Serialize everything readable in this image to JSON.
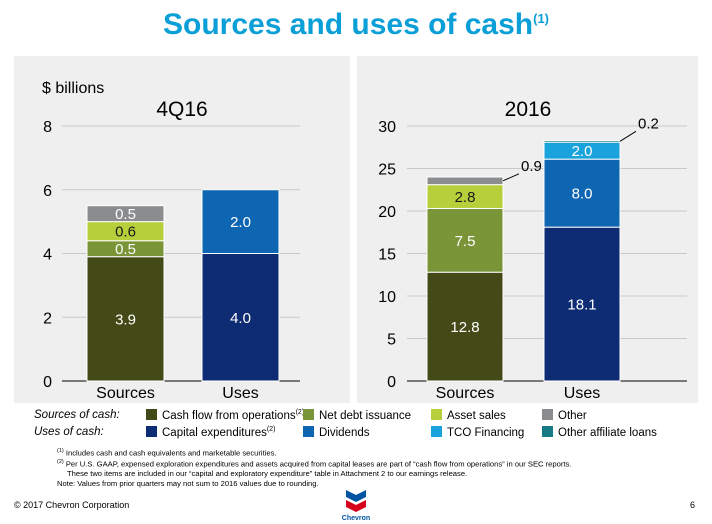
{
  "title": "Sources and uses of cash",
  "title_superscript": "(1)",
  "y_unit_label": "$ billions",
  "chart_data": [
    {
      "type": "bar",
      "stacked": true,
      "title": "4Q16",
      "categories": [
        "Sources",
        "Uses"
      ],
      "ylim": [
        0,
        8
      ],
      "yticks": [
        0,
        2,
        4,
        6,
        8
      ],
      "grid": true,
      "series": [
        {
          "name": "Cash flow from operations",
          "color": "#434a17",
          "values": [
            3.9,
            0
          ]
        },
        {
          "name": "Net debt issuance",
          "color": "#7a9537",
          "values": [
            0.5,
            0
          ]
        },
        {
          "name": "Asset sales",
          "color": "#b7cf3b",
          "values": [
            0.6,
            0
          ]
        },
        {
          "name": "Other",
          "color": "#8a8c8e",
          "values": [
            0.5,
            0
          ]
        },
        {
          "name": "Capital expenditures",
          "color": "#0e2c73",
          "values": [
            0,
            4.0
          ]
        },
        {
          "name": "Dividends",
          "color": "#0e66b2",
          "values": [
            0,
            2.0
          ]
        },
        {
          "name": "TCO Financing",
          "color": "#1aa2dd",
          "values": [
            0,
            0
          ]
        },
        {
          "name": "Other affiliate loans",
          "color": "#177b86",
          "values": [
            0,
            0
          ]
        }
      ],
      "labels": [
        [
          "3.9",
          "0.5",
          "0.6",
          "0.5"
        ],
        [
          "4.0",
          "2.0"
        ]
      ]
    },
    {
      "type": "bar",
      "stacked": true,
      "title": "2016",
      "categories": [
        "Sources",
        "Uses"
      ],
      "ylim": [
        0,
        30
      ],
      "yticks": [
        0,
        5,
        10,
        15,
        20,
        25,
        30
      ],
      "grid": true,
      "series": [
        {
          "name": "Cash flow from operations",
          "color": "#434a17",
          "values": [
            12.8,
            0
          ]
        },
        {
          "name": "Net debt issuance",
          "color": "#7a9537",
          "values": [
            7.5,
            0
          ]
        },
        {
          "name": "Asset sales",
          "color": "#b7cf3b",
          "values": [
            2.8,
            0
          ]
        },
        {
          "name": "Other",
          "color": "#8a8c8e",
          "values": [
            0.9,
            0
          ]
        },
        {
          "name": "Capital expenditures",
          "color": "#0e2c73",
          "values": [
            0,
            18.1
          ]
        },
        {
          "name": "Dividends",
          "color": "#0e66b2",
          "values": [
            0,
            8.0
          ]
        },
        {
          "name": "TCO Financing",
          "color": "#1aa2dd",
          "values": [
            0,
            2.0
          ]
        },
        {
          "name": "Other affiliate loans",
          "color": "#177b86",
          "values": [
            0,
            0.2
          ]
        }
      ],
      "labels": [
        [
          "12.8",
          "7.5",
          "2.8",
          "0.9"
        ],
        [
          "18.1",
          "8.0",
          "2.0",
          "0.2"
        ]
      ]
    }
  ],
  "legend": {
    "sources_label": "Sources of cash:",
    "uses_label": "Uses of cash:",
    "sources": [
      {
        "label": "Cash flow from operations",
        "sup": "(2)",
        "color": "#434a17"
      },
      {
        "label": "Net debt issuance",
        "sup": "",
        "color": "#7a9537"
      },
      {
        "label": "Asset sales",
        "sup": "",
        "color": "#b7cf3b"
      },
      {
        "label": "Other",
        "sup": "",
        "color": "#8a8c8e"
      }
    ],
    "uses": [
      {
        "label": "Capital expenditures",
        "sup": "(2)",
        "color": "#0e2c73"
      },
      {
        "label": "Dividends",
        "sup": "",
        "color": "#0e66b2"
      },
      {
        "label": "TCO Financing",
        "sup": "",
        "color": "#1aa2dd"
      },
      {
        "label": "Other affiliate loans",
        "sup": "",
        "color": "#177b86"
      }
    ]
  },
  "footnotes": [
    {
      "mark": "(1)",
      "text": "Includes cash and cash equivalents and marketable securities."
    },
    {
      "mark": "(2)",
      "text": "Per U.S. GAAP, expensed exploration expenditures and assets acquired from capital leases are part of “cash flow from operations” in our SEC reports."
    },
    {
      "mark": "",
      "text": "These two items are included in our “capital and exploratory expenditure” table in Attachment 2 to our earnings release."
    },
    {
      "mark": "",
      "text": "Note: Values from prior quarters may not sum to 2016 values due to rounding."
    }
  ],
  "footer": {
    "copyright": "© 2017 Chevron Corporation",
    "logo_text": "Chevron",
    "page_number": "6"
  },
  "colors": {
    "title": "#0b9fd8",
    "panel_background": "#efefef",
    "logo_blue": "#0054a4",
    "logo_red": "#d6001c"
  }
}
